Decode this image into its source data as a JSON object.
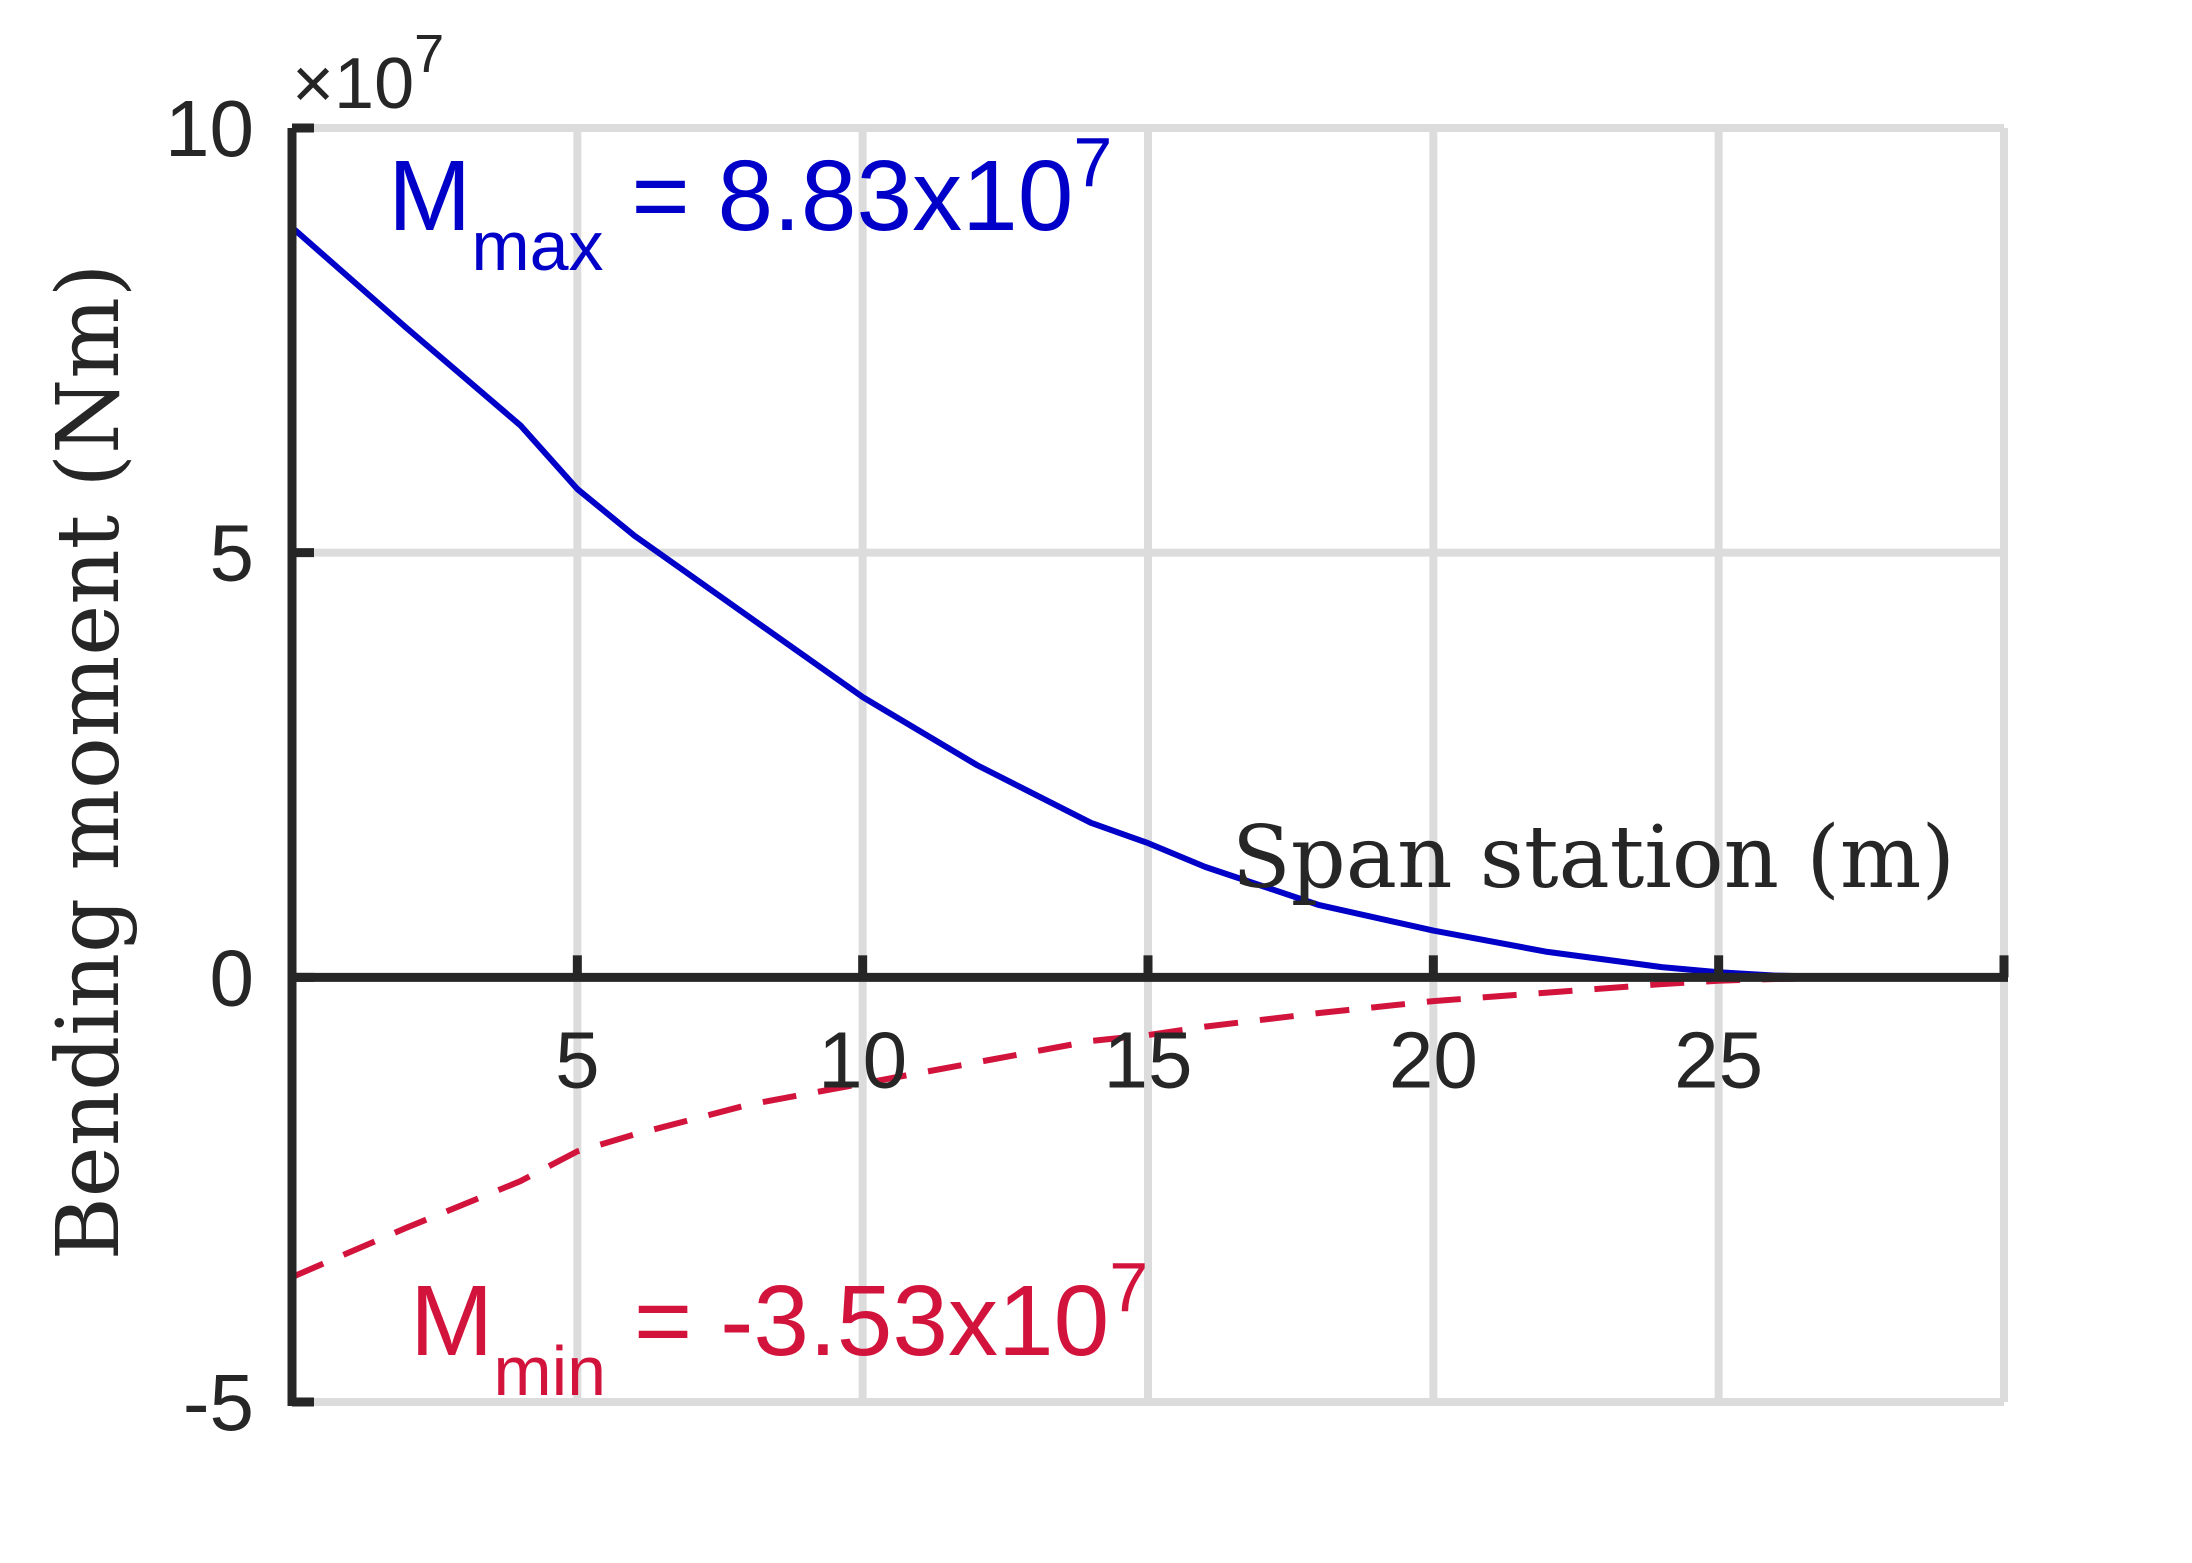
{
  "chart_data": {
    "type": "line",
    "xlabel": "Span station (m)",
    "ylabel": "Bending moment (Nm)",
    "xlim": [
      0,
      30
    ],
    "ylim": [
      -5,
      10
    ],
    "y_multiplier": {
      "base": "10",
      "exponent": "7",
      "times": "×"
    },
    "x_ticks": [
      5,
      10,
      15,
      20,
      25
    ],
    "y_ticks": [
      -5,
      0,
      5,
      10
    ],
    "grid": true,
    "x_axis_at_zero": true,
    "series": [
      {
        "color": "#0000c8",
        "dash": "solid",
        "x": [
          0,
          2,
          4,
          5,
          6,
          8,
          10,
          12,
          14,
          15,
          16,
          18,
          20,
          22,
          24,
          25,
          26,
          27,
          28,
          29
        ],
        "y": [
          8.83,
          7.65,
          6.5,
          5.75,
          5.2,
          4.25,
          3.3,
          2.5,
          1.82,
          1.58,
          1.3,
          0.85,
          0.55,
          0.3,
          0.12,
          0.06,
          0.02,
          0.005,
          0.0,
          0.0
        ]
      },
      {
        "color": "#d2143c",
        "dash": "dashed",
        "x": [
          0,
          2,
          4,
          5,
          6,
          8,
          10,
          12,
          14,
          15,
          16,
          18,
          20,
          22,
          24,
          25,
          26,
          27,
          28,
          29
        ],
        "y": [
          -3.53,
          -2.95,
          -2.4,
          -2.05,
          -1.85,
          -1.5,
          -1.25,
          -1.0,
          -0.75,
          -0.68,
          -0.58,
          -0.42,
          -0.28,
          -0.18,
          -0.08,
          -0.04,
          -0.02,
          -0.01,
          0.0,
          0.0
        ]
      }
    ],
    "annotations": [
      {
        "main": "M",
        "sub": "max",
        "text": " = 8.83x10",
        "sup": "7",
        "color": "#0000c8"
      },
      {
        "main": "M",
        "sub": "min",
        "text": " = -3.53x10",
        "sup": "7",
        "color": "#d2143c"
      }
    ]
  }
}
